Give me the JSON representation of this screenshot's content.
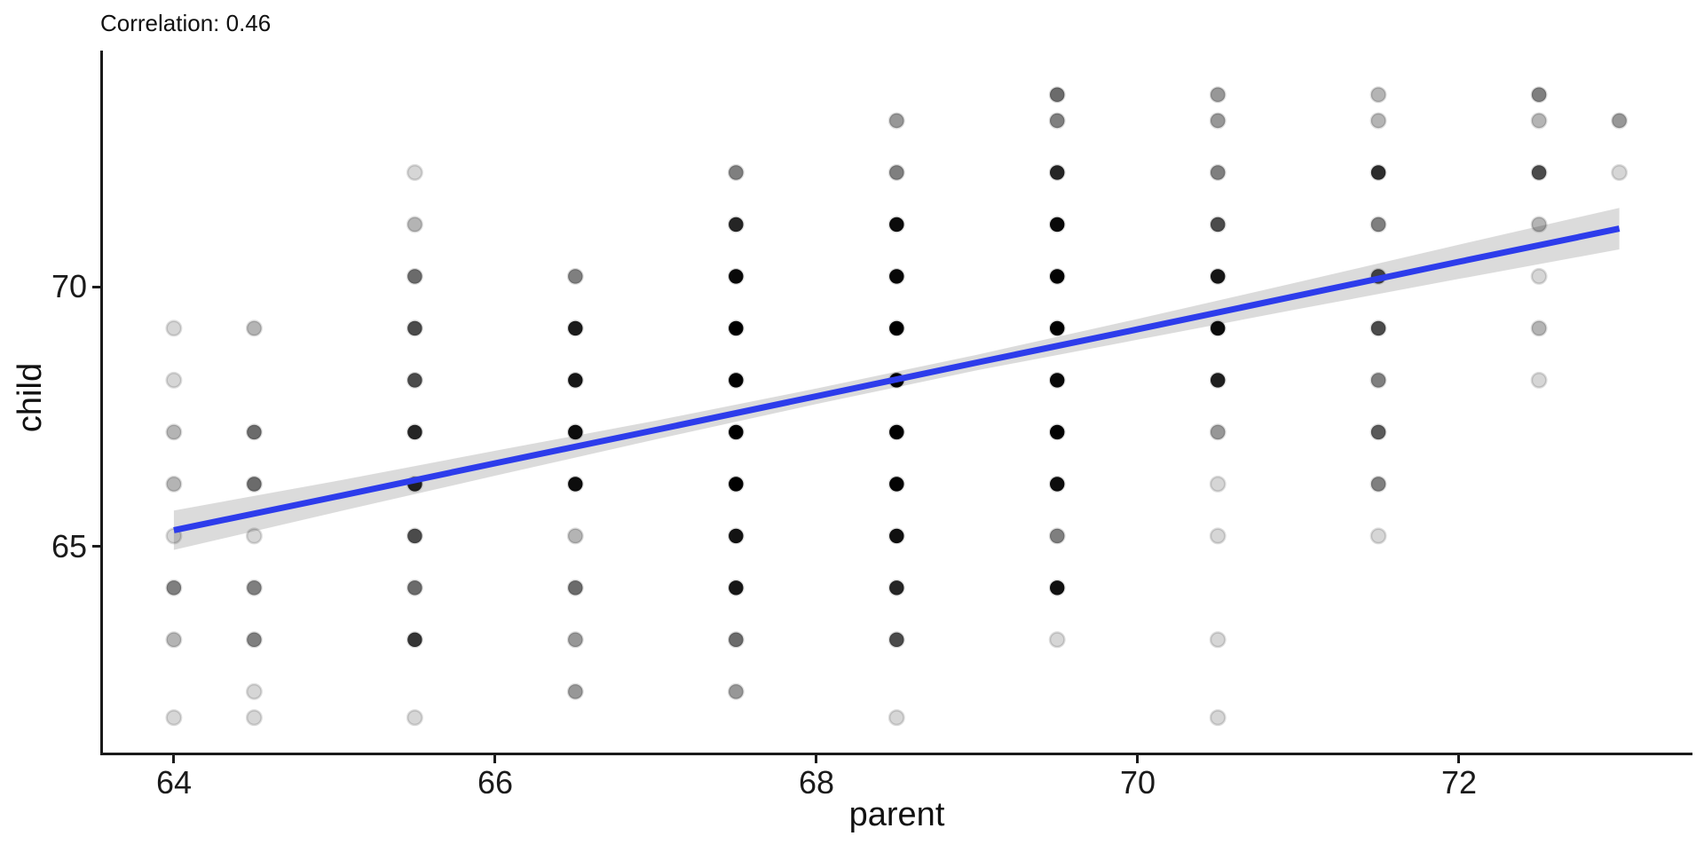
{
  "title": "Correlation: 0.46",
  "x_axis": {
    "title": "parent"
  },
  "y_axis": {
    "title": "child"
  },
  "colors": {
    "background": "#ffffff",
    "axis": "#1a1a1a",
    "text": "#111111",
    "point": "#000000",
    "regression_line": "#2d3ceb",
    "ribbon": "rgba(0,0,0,0.14)"
  },
  "chart_data": {
    "type": "scatter",
    "title": "Correlation: 0.46",
    "correlation": 0.46,
    "xlabel": "parent",
    "ylabel": "child",
    "xlim": [
      63.55,
      73.45
    ],
    "ylim": [
      61.0,
      74.55
    ],
    "grid": "off",
    "legend": "none",
    "x_ticks": [
      {
        "value": 64,
        "label": "64"
      },
      {
        "value": 66,
        "label": "66"
      },
      {
        "value": 68,
        "label": "68"
      },
      {
        "value": 70,
        "label": "70"
      },
      {
        "value": 72,
        "label": "72"
      }
    ],
    "y_ticks": [
      {
        "value": 65,
        "label": "65"
      },
      {
        "value": 70,
        "label": "70"
      }
    ],
    "point_alpha_per_obs": 0.16,
    "points_fields": [
      "parent",
      "child",
      "count"
    ],
    "points": [
      [
        64,
        69.2,
        1
      ],
      [
        64,
        68.2,
        1
      ],
      [
        64,
        67.2,
        2
      ],
      [
        64,
        66.2,
        2
      ],
      [
        64,
        65.2,
        1
      ],
      [
        64,
        64.2,
        4
      ],
      [
        64,
        63.2,
        2
      ],
      [
        64,
        61.7,
        1
      ],
      [
        64.5,
        69.2,
        2
      ],
      [
        64.5,
        67.2,
        5
      ],
      [
        64.5,
        66.2,
        5
      ],
      [
        64.5,
        65.2,
        1
      ],
      [
        64.5,
        64.2,
        4
      ],
      [
        64.5,
        63.2,
        4
      ],
      [
        64.5,
        62.2,
        1
      ],
      [
        64.5,
        61.7,
        1
      ],
      [
        65.5,
        72.2,
        1
      ],
      [
        65.5,
        71.2,
        2
      ],
      [
        65.5,
        70.2,
        5
      ],
      [
        65.5,
        69.2,
        7
      ],
      [
        65.5,
        68.2,
        7
      ],
      [
        65.5,
        67.2,
        11
      ],
      [
        65.5,
        66.2,
        11
      ],
      [
        65.5,
        65.2,
        7
      ],
      [
        65.5,
        64.2,
        5
      ],
      [
        65.5,
        63.2,
        9
      ],
      [
        65.5,
        61.7,
        1
      ],
      [
        66.5,
        70.2,
        4
      ],
      [
        66.5,
        69.2,
        13
      ],
      [
        66.5,
        68.2,
        14
      ],
      [
        66.5,
        67.2,
        17
      ],
      [
        66.5,
        66.2,
        17
      ],
      [
        66.5,
        65.2,
        2
      ],
      [
        66.5,
        64.2,
        5
      ],
      [
        66.5,
        63.2,
        3
      ],
      [
        66.5,
        62.2,
        3
      ],
      [
        67.5,
        72.2,
        4
      ],
      [
        67.5,
        71.2,
        11
      ],
      [
        67.5,
        70.2,
        19
      ],
      [
        67.5,
        69.2,
        38
      ],
      [
        67.5,
        68.2,
        28
      ],
      [
        67.5,
        67.2,
        38
      ],
      [
        67.5,
        66.2,
        36
      ],
      [
        67.5,
        65.2,
        15
      ],
      [
        67.5,
        64.2,
        14
      ],
      [
        67.5,
        63.2,
        5
      ],
      [
        67.5,
        62.2,
        3
      ],
      [
        68.5,
        73.2,
        3
      ],
      [
        68.5,
        72.2,
        4
      ],
      [
        68.5,
        71.2,
        18
      ],
      [
        68.5,
        70.2,
        21
      ],
      [
        68.5,
        69.2,
        48
      ],
      [
        68.5,
        68.2,
        34
      ],
      [
        68.5,
        67.2,
        31
      ],
      [
        68.5,
        66.2,
        25
      ],
      [
        68.5,
        65.2,
        16
      ],
      [
        68.5,
        64.2,
        11
      ],
      [
        68.5,
        63.2,
        7
      ],
      [
        68.5,
        61.7,
        1
      ],
      [
        69.5,
        73.7,
        5
      ],
      [
        69.5,
        73.2,
        4
      ],
      [
        69.5,
        72.2,
        11
      ],
      [
        69.5,
        71.2,
        20
      ],
      [
        69.5,
        70.2,
        25
      ],
      [
        69.5,
        69.2,
        33
      ],
      [
        69.5,
        68.2,
        20
      ],
      [
        69.5,
        67.2,
        27
      ],
      [
        69.5,
        66.2,
        17
      ],
      [
        69.5,
        65.2,
        4
      ],
      [
        69.5,
        64.2,
        16
      ],
      [
        69.5,
        63.2,
        1
      ],
      [
        70.5,
        73.7,
        3
      ],
      [
        70.5,
        73.2,
        3
      ],
      [
        70.5,
        72.2,
        4
      ],
      [
        70.5,
        71.2,
        7
      ],
      [
        70.5,
        70.2,
        14
      ],
      [
        70.5,
        69.2,
        18
      ],
      [
        70.5,
        68.2,
        12
      ],
      [
        70.5,
        67.2,
        3
      ],
      [
        70.5,
        66.2,
        1
      ],
      [
        70.5,
        65.2,
        1
      ],
      [
        70.5,
        63.2,
        1
      ],
      [
        70.5,
        61.7,
        1
      ],
      [
        71.5,
        73.7,
        2
      ],
      [
        71.5,
        73.2,
        2
      ],
      [
        71.5,
        72.2,
        10
      ],
      [
        71.5,
        71.2,
        4
      ],
      [
        71.5,
        70.2,
        7
      ],
      [
        71.5,
        69.2,
        7
      ],
      [
        71.5,
        68.2,
        4
      ],
      [
        71.5,
        67.2,
        6
      ],
      [
        71.5,
        66.2,
        4
      ],
      [
        71.5,
        65.2,
        1
      ],
      [
        72.5,
        73.7,
        4
      ],
      [
        72.5,
        73.2,
        2
      ],
      [
        72.5,
        72.2,
        7
      ],
      [
        72.5,
        71.2,
        2
      ],
      [
        72.5,
        70.2,
        1
      ],
      [
        72.5,
        69.2,
        2
      ],
      [
        72.5,
        68.2,
        1
      ],
      [
        73,
        73.2,
        3
      ],
      [
        73,
        72.2,
        1
      ]
    ],
    "regression": {
      "intercept": 23.94,
      "slope": 0.646,
      "x": [
        64,
        65,
        66,
        67,
        68,
        69,
        70,
        71,
        72,
        73
      ],
      "fit": [
        65.31,
        65.95,
        66.6,
        67.24,
        67.89,
        68.54,
        69.18,
        69.83,
        70.48,
        71.12
      ],
      "ci_half_width": [
        0.38,
        0.3,
        0.24,
        0.18,
        0.15,
        0.15,
        0.2,
        0.26,
        0.33,
        0.4
      ]
    }
  }
}
